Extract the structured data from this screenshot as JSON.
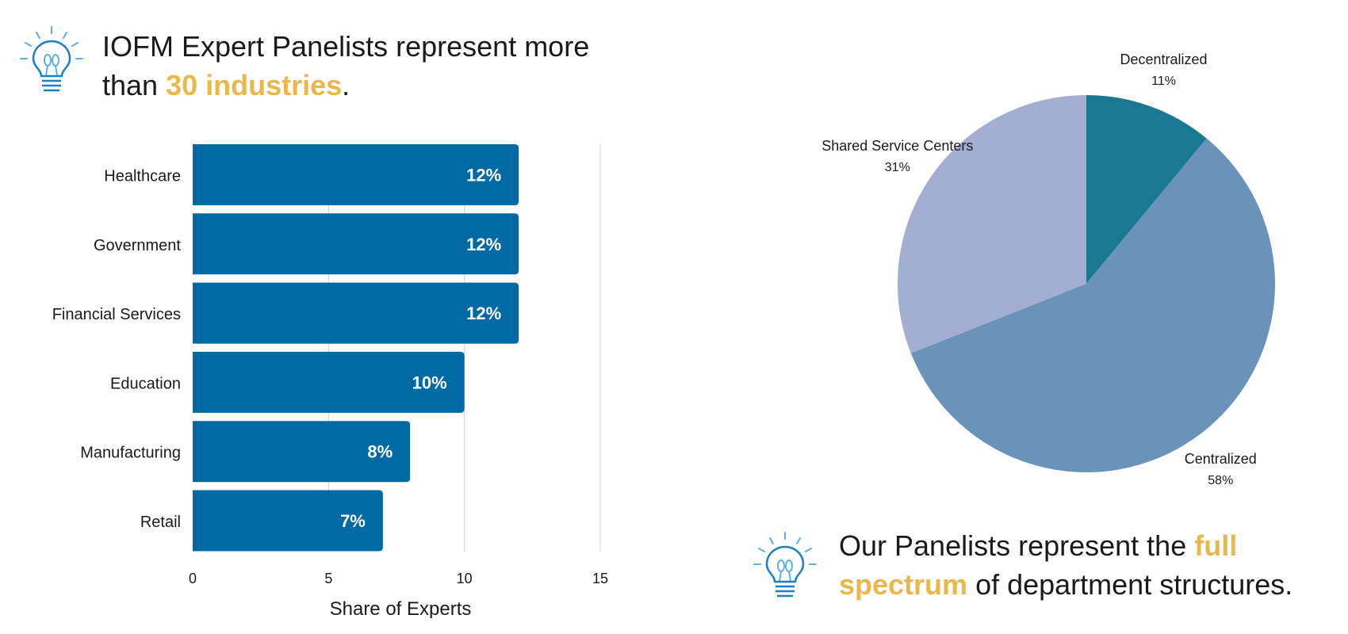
{
  "headline_left": {
    "text_before": "IOFM Expert Panelists represent more than ",
    "highlight": "30 industries",
    "text_after": "."
  },
  "headline_right": {
    "text_before": "Our Panelists represent the ",
    "highlight": "full spectrum",
    "text_after": " of department structures."
  },
  "icons": {
    "left": "lightbulb-icon",
    "right": "lightbulb-icon"
  },
  "colors": {
    "highlight": "#e9b84a",
    "bar": "#0169a4",
    "bulb_outline": "#1b7fc4",
    "bulb_rays": "#5bb0e3"
  },
  "chart_data": [
    {
      "type": "bar",
      "orientation": "horizontal",
      "categories": [
        "Healthcare",
        "Government",
        "Financial Services",
        "Education",
        "Manufacturing",
        "Retail"
      ],
      "values": [
        12,
        12,
        12,
        10,
        8,
        7
      ],
      "data_labels": [
        "12%",
        "12%",
        "12%",
        "10%",
        "8%",
        "7%"
      ],
      "xlabel": "Share of Experts",
      "ylabel": "",
      "xlim": [
        0,
        15
      ],
      "ticks": [
        0,
        5,
        10,
        15
      ],
      "grid": true,
      "color": "#0169a4"
    },
    {
      "type": "pie",
      "slices": [
        {
          "label": "Decentralized",
          "value": 11,
          "value_label": "11%",
          "color": "#1b7893"
        },
        {
          "label": "Centralized",
          "value": 58,
          "value_label": "58%",
          "color": "#6b93b9"
        },
        {
          "label": "Shared Service Centers",
          "value": 31,
          "value_label": "31%",
          "color": "#a4aed2"
        }
      ],
      "start_angle_deg": 0,
      "direction": "clockwise"
    }
  ]
}
